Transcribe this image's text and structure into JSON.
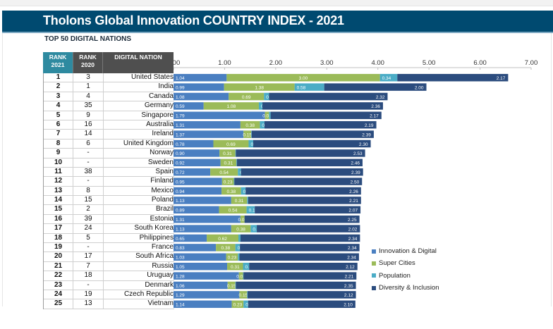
{
  "banner": {
    "title": "Tholons Global Innovation COUNTRY INDEX - 2021"
  },
  "subtitle": "TOP 50 DIGITAL NATIONS",
  "table_headers": {
    "rank2021": [
      "RANK",
      "2021"
    ],
    "rank2020": [
      "RANK",
      "2020"
    ],
    "nation": "DIGITAL NATION"
  },
  "colors": {
    "innovation": "#4a7fc1",
    "super_cities": "#9bbb59",
    "population": "#4bacc6",
    "diversity": "#2b4c7e"
  },
  "chart_data": {
    "type": "bar",
    "orientation": "horizontal",
    "stacked": true,
    "title": "Tholons Global Innovation COUNTRY INDEX - 2021",
    "subtitle": "TOP 50 DIGITAL NATIONS",
    "xlim": [
      0,
      7
    ],
    "x_ticks": [
      "0.00",
      "1.00",
      "2.00",
      "3.00",
      "4.00",
      "5.00",
      "6.00",
      "7.00"
    ],
    "grid": false,
    "legend_position": "bottom-right",
    "categories": [
      "United States",
      "India",
      "Canada",
      "Germany",
      "Singapore",
      "Australia",
      "Ireland",
      "United Kingdom",
      "Norway",
      "Sweden",
      "Spain",
      "Finland",
      "Mexico",
      "Poland",
      "Brazil",
      "Estonia",
      "South Korea",
      "Philippines",
      "France",
      "South Africa",
      "Russia",
      "Uruguay",
      "Denmark",
      "Czech Republic",
      "Vietnam"
    ],
    "rank_2021": [
      "1",
      "2",
      "3",
      "4",
      "5",
      "6",
      "7",
      "8",
      "9",
      "10",
      "11",
      "12",
      "13",
      "14",
      "15",
      "16",
      "17",
      "18",
      "19",
      "20",
      "21",
      "22",
      "23",
      "24",
      "25"
    ],
    "rank_2020": [
      "3",
      "1",
      "4",
      "35",
      "9",
      "16",
      "14",
      "6",
      "-",
      "-",
      "38",
      "-",
      "8",
      "15",
      "2",
      "39",
      "24",
      "5",
      "-",
      "17",
      "7",
      "18",
      "-",
      "19",
      "13"
    ],
    "series": [
      {
        "name": "Innovation & Digital",
        "values": [
          1.04,
          0.99,
          1.08,
          0.59,
          1.79,
          1.31,
          1.37,
          0.78,
          0.9,
          0.92,
          0.72,
          0.95,
          0.94,
          1.13,
          0.89,
          1.31,
          1.13,
          0.65,
          0.83,
          1.03,
          1.05,
          1.28,
          1.06,
          1.29,
          1.14
        ]
      },
      {
        "name": "Super Cities",
        "values": [
          3.0,
          1.38,
          0.69,
          1.08,
          0.08,
          0.38,
          0.15,
          0.69,
          0.31,
          0.31,
          0.54,
          0.23,
          0.38,
          0.31,
          0.54,
          0.08,
          0.38,
          0.62,
          0.38,
          0.23,
          0.31,
          0.08,
          0.15,
          0.15,
          0.23
        ]
      },
      {
        "name": "Population",
        "values": [
          0.34,
          0.58,
          0.1,
          0.07,
          0.03,
          0.09,
          0.01,
          0.09,
          0.01,
          0.01,
          0.06,
          0.01,
          0.09,
          0.02,
          0.16,
          0.0,
          0.12,
          0.04,
          0.09,
          0.03,
          0.12,
          0.01,
          0.01,
          0.01,
          0.09
        ]
      },
      {
        "name": "Diversity & Inclusion",
        "values": [
          2.17,
          2.0,
          2.32,
          2.36,
          2.17,
          2.19,
          2.39,
          2.3,
          2.53,
          2.46,
          2.39,
          2.5,
          2.26,
          2.21,
          2.07,
          2.25,
          2.02,
          2.34,
          2.34,
          2.34,
          2.12,
          2.21,
          2.35,
          2.12,
          2.1
        ]
      }
    ]
  }
}
